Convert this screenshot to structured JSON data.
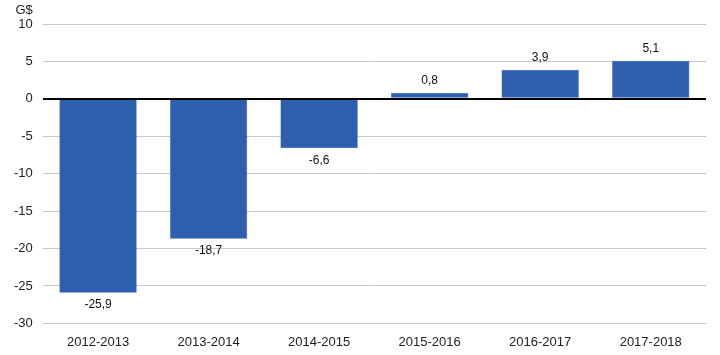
{
  "chart_data": {
    "type": "bar",
    "y_label": "G$",
    "categories": [
      "2012-2013",
      "2013-2014",
      "2014-2015",
      "2015-2016",
      "2016-2017",
      "2017-2018"
    ],
    "values": [
      -25.9,
      -18.7,
      -6.6,
      0.8,
      3.9,
      5.1
    ],
    "value_labels": [
      "-25,9",
      "-18,7",
      "-6,6",
      "0,8",
      "3,9",
      "5,1"
    ],
    "color": "#2e5fae",
    "ylim": [
      -30,
      10
    ],
    "yticks": [
      -30,
      -25,
      -20,
      -15,
      -10,
      -5,
      0,
      5,
      10
    ],
    "grid": true,
    "data_labels": true
  }
}
